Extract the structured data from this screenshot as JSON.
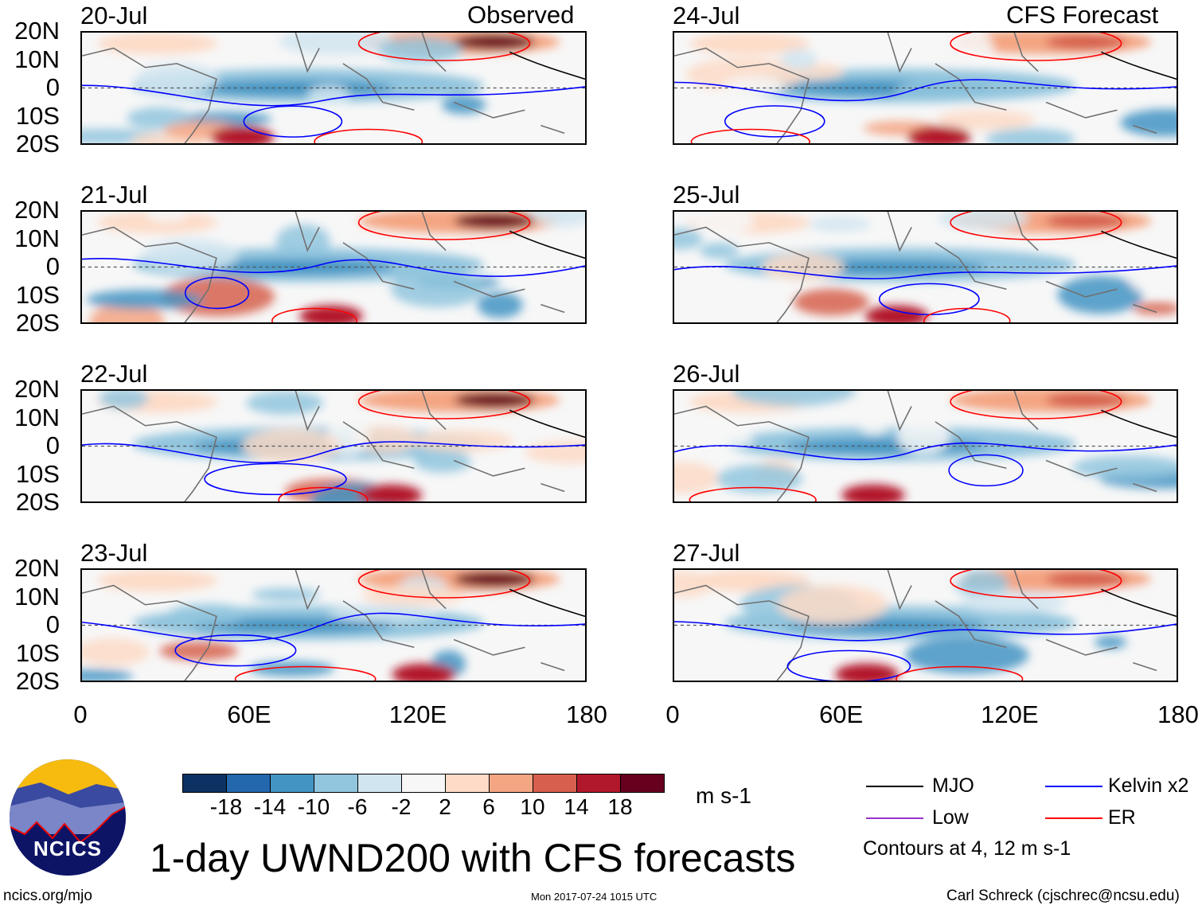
{
  "column_headers": {
    "left": "Observed",
    "right": "CFS Forecast"
  },
  "panels": {
    "left": [
      {
        "date": "20-Jul"
      },
      {
        "date": "21-Jul"
      },
      {
        "date": "22-Jul"
      },
      {
        "date": "23-Jul"
      }
    ],
    "right": [
      {
        "date": "24-Jul"
      },
      {
        "date": "25-Jul"
      },
      {
        "date": "26-Jul"
      },
      {
        "date": "27-Jul"
      }
    ]
  },
  "lat_labels": [
    "20N",
    "10N",
    "0",
    "10S",
    "20S"
  ],
  "lon_labels": [
    "0",
    "60E",
    "120E",
    "180"
  ],
  "colorbar": {
    "colors": [
      "#0b3263",
      "#2367ad",
      "#4394c3",
      "#92c5de",
      "#d1e5f0",
      "#f7f7f7",
      "#fddbc7",
      "#f4a582",
      "#d6604d",
      "#b2182b",
      "#67001f"
    ],
    "labels": [
      "-18",
      "-14",
      "-10",
      "-6",
      "-2",
      "2",
      "6",
      "10",
      "14",
      "18"
    ],
    "units": "m s-1"
  },
  "legend": {
    "items": [
      {
        "label": "MJO",
        "color": "#000000"
      },
      {
        "label": "Low",
        "color": "#9933cc"
      },
      {
        "label": "Kelvin x2",
        "color": "#0000ff"
      },
      {
        "label": "ER",
        "color": "#ff0000"
      }
    ],
    "note": "Contours at 4, 12 m s-1"
  },
  "title": "1-day UWND200 with CFS forecasts",
  "logo_text": "NCICS",
  "footer": {
    "url": "ncics.org/mjo",
    "timestamp": "Mon 2017-07-24 1015 UTC",
    "credit": "Carl Schreck (cjschrec@ncsu.edu)"
  }
}
